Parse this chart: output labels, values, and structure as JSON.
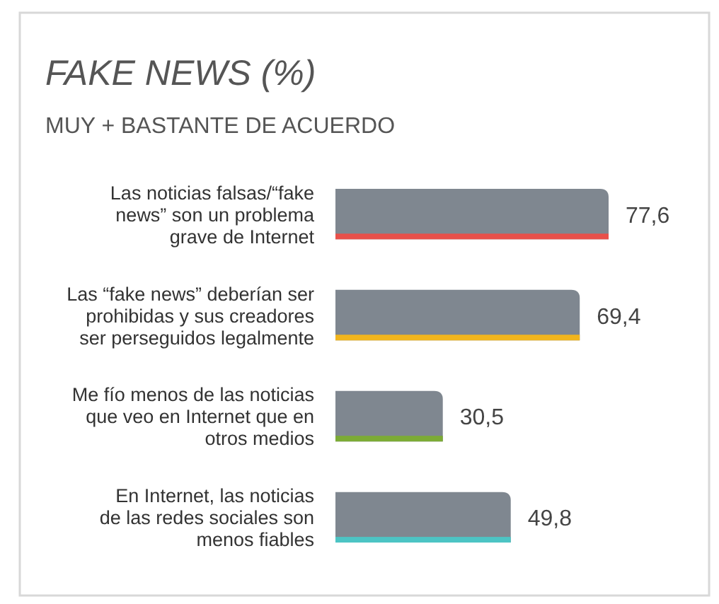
{
  "chart_data": {
    "type": "bar",
    "orientation": "horizontal",
    "title": "FAKE NEWS (%)",
    "subtitle": "MUY + BASTANTE DE ACUERDO",
    "categories": [
      "Las noticias falsas/“fake\nnews” son un problema\ngrave de Internet",
      "Las “fake news” deberían ser\nprohibidas y sus creadores\nser perseguidos legalmente",
      "Me fío menos de las noticias\nque veo en Internet que en\notros medios",
      "En Internet, las noticias\nde las redes sociales son\nmenos fiables"
    ],
    "values": [
      77.6,
      69.4,
      30.5,
      49.8
    ],
    "value_labels": [
      "77,6",
      "69,4",
      "30,5",
      "49,8"
    ],
    "colors": [
      "#7f8790",
      "#7f8790",
      "#7f8790",
      "#7f8790"
    ]
  }
}
